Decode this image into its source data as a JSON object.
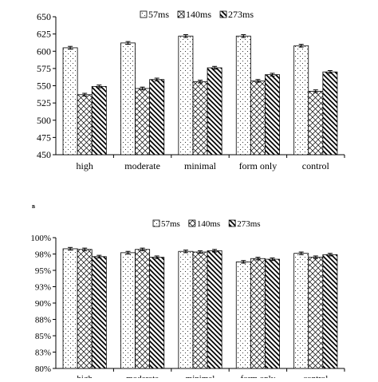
{
  "chart_data": [
    {
      "type": "bar",
      "title": "",
      "xlabel": "",
      "ylabel": "",
      "categories": [
        "high",
        "moderate",
        "minimal",
        "form only",
        "control"
      ],
      "series": [
        {
          "name": "57ms",
          "values": [
            605,
            612,
            622,
            622,
            608
          ],
          "errors": [
            2,
            2,
            2,
            2,
            2
          ]
        },
        {
          "name": "140ms",
          "values": [
            537,
            546,
            556,
            557,
            542
          ],
          "errors": [
            2,
            2,
            2,
            2,
            2
          ]
        },
        {
          "name": "273ms",
          "values": [
            549,
            559,
            576,
            566,
            570
          ],
          "errors": [
            2,
            2,
            2,
            2,
            2
          ]
        }
      ],
      "ylim": [
        450,
        650
      ],
      "yticks": [
        "450",
        "475",
        "500",
        "525",
        "550",
        "575",
        "600",
        "625",
        "650"
      ],
      "legend": "top-center",
      "grid": false
    },
    {
      "type": "bar",
      "panel_label": "B",
      "title": "",
      "xlabel": "",
      "ylabel": "",
      "categories": [
        "high",
        "moderate",
        "minimal",
        "form only",
        "control"
      ],
      "series": [
        {
          "name": "57ms",
          "values": [
            0.983,
            0.977,
            0.979,
            0.963,
            0.976
          ],
          "errors": [
            0.002,
            0.002,
            0.002,
            0.002,
            0.002
          ]
        },
        {
          "name": "140ms",
          "values": [
            0.982,
            0.982,
            0.978,
            0.968,
            0.97
          ],
          "errors": [
            0.002,
            0.002,
            0.002,
            0.002,
            0.002
          ]
        },
        {
          "name": "273ms",
          "values": [
            0.971,
            0.97,
            0.98,
            0.967,
            0.974
          ],
          "errors": [
            0.002,
            0.002,
            0.002,
            0.002,
            0.002
          ]
        }
      ],
      "ylim": [
        0.8,
        1.0
      ],
      "yticks": [
        "80%",
        "83%",
        "85%",
        "88%",
        "90%",
        "93%",
        "95%",
        "98%",
        "100%"
      ],
      "legend": "top-center",
      "grid": false
    }
  ]
}
